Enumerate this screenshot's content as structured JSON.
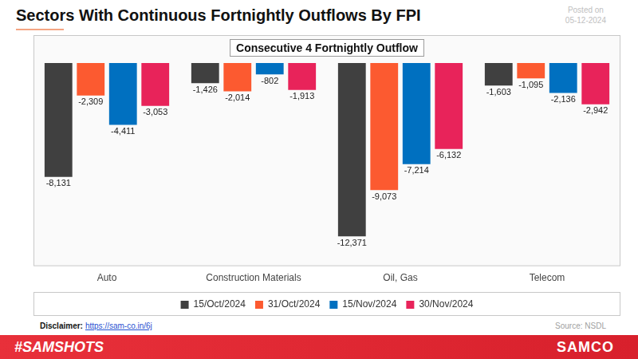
{
  "chart_data": {
    "type": "bar",
    "title": "Sectors With Continuous Fortnightly Outflows By FPI",
    "annotation": "Consecutive 4 Fortnightly Outflow",
    "categories": [
      "Auto",
      "Construction Materials",
      "Oil, Gas",
      "Telecom"
    ],
    "series": [
      {
        "name": "15/Oct/2024",
        "color": "#404040",
        "values": [
          -8131,
          -1426,
          -12371,
          -1603
        ],
        "value_labels": [
          "-8,131",
          "-1,426",
          "-12,371",
          "-1,603"
        ]
      },
      {
        "name": "31/Oct/2024",
        "color": "#fc5a30",
        "values": [
          -2309,
          -2014,
          -9073,
          -1095
        ],
        "value_labels": [
          "-2,309",
          "-2,014",
          "-9,073",
          "-1,095"
        ]
      },
      {
        "name": "15/Nov/2024",
        "color": "#0070c0",
        "values": [
          -4411,
          -802,
          -7214,
          -2136
        ],
        "value_labels": [
          "-4,411",
          "-802",
          "-7,214",
          "-2,136"
        ]
      },
      {
        "name": "30/Nov/2024",
        "color": "#e8235a",
        "values": [
          -3053,
          -1913,
          -6132,
          -2942
        ],
        "value_labels": [
          "-3,053",
          "-1,913",
          "-6,132",
          "-2,942"
        ]
      }
    ],
    "ylim": [
      -14500,
      2000
    ],
    "grid": false,
    "legend": "bottom",
    "data_labels": true,
    "tick_labels": "x"
  },
  "page": {
    "posted_on": [
      "Posted on",
      "05-12-2024"
    ],
    "disclaimer": {
      "label": "Disclaimer:",
      "link": "https://sam-co.in/6j"
    },
    "source": "Source: NSDL",
    "footer_tag": "#SAMSHOTS",
    "brand": "SAMCO"
  }
}
